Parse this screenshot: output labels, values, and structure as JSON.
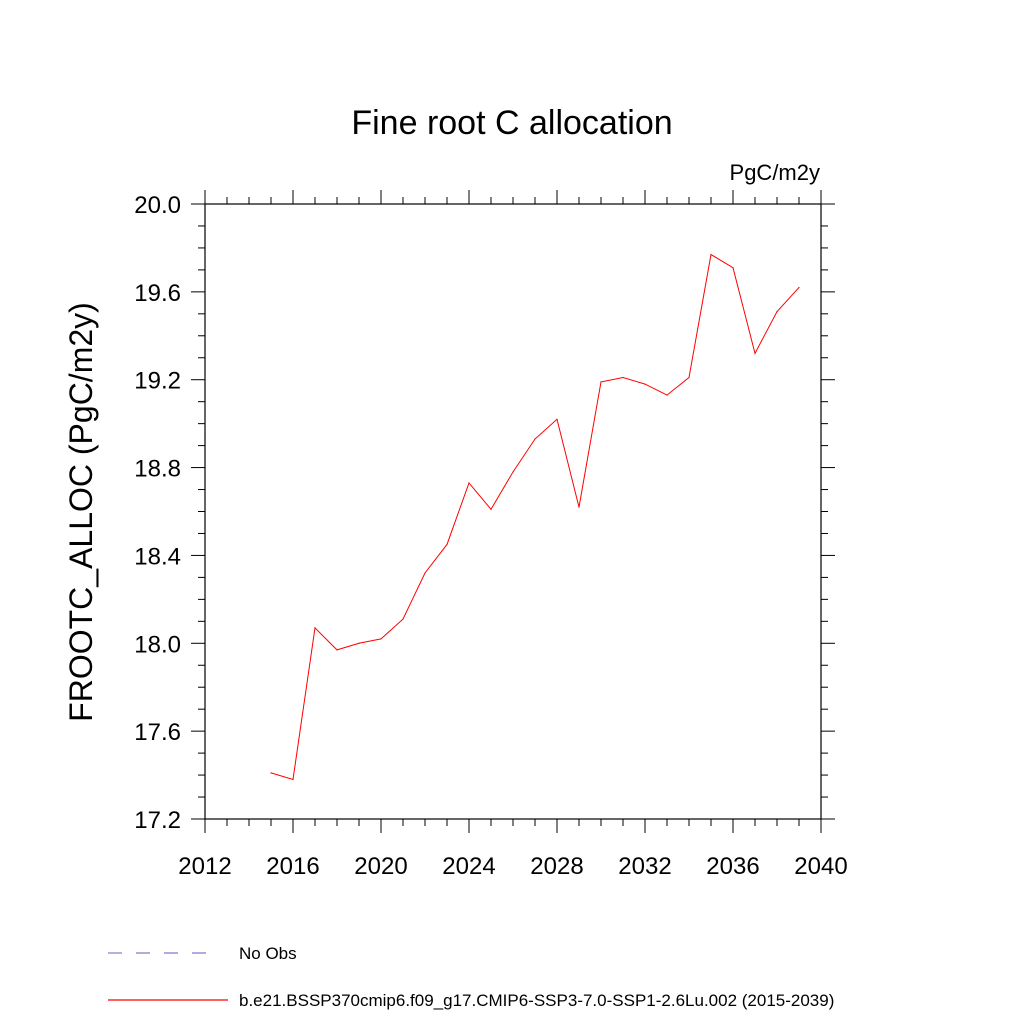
{
  "chart_data": {
    "type": "line",
    "title": "Fine root C allocation",
    "units": "PgC/m2y",
    "xlabel": "",
    "ylabel": "FROOTC_ALLOC  (PgC/m2y)",
    "xlim": [
      2012,
      2040
    ],
    "ylim": [
      17.2,
      20.0
    ],
    "xticks": [
      2012,
      2016,
      2020,
      2024,
      2028,
      2032,
      2036,
      2040
    ],
    "yticks": [
      17.2,
      17.6,
      18.0,
      18.4,
      18.8,
      19.2,
      19.6,
      20.0
    ],
    "xtick_labels": [
      "2012",
      "2016",
      "2020",
      "2024",
      "2028",
      "2032",
      "2036",
      "2040"
    ],
    "ytick_labels": [
      "17.2",
      "17.6",
      "18.0",
      "18.4",
      "18.8",
      "19.2",
      "19.6",
      "20.0"
    ],
    "series": [
      {
        "name": "b.e21.BSSP370cmip6.f09_g17.CMIP6-SSP3-7.0-SSP1-2.6Lu.002 (2015-2039)",
        "color": "#ff0000",
        "style": "solid",
        "x": [
          2015,
          2016,
          2017,
          2018,
          2019,
          2020,
          2021,
          2022,
          2023,
          2024,
          2025,
          2026,
          2027,
          2028,
          2029,
          2030,
          2031,
          2032,
          2033,
          2034,
          2035,
          2036,
          2037,
          2038,
          2039
        ],
        "y": [
          17.41,
          17.38,
          18.07,
          17.97,
          18.0,
          18.02,
          18.11,
          18.32,
          18.45,
          18.73,
          18.61,
          18.78,
          18.93,
          19.02,
          18.62,
          19.19,
          19.21,
          19.18,
          19.13,
          19.21,
          19.77,
          19.71,
          19.32,
          19.51,
          19.62
        ]
      }
    ],
    "legend": [
      {
        "label": "No Obs",
        "color": "#8877cc",
        "style": "dashed"
      },
      {
        "label": "b.e21.BSSP370cmip6.f09_g17.CMIP6-SSP3-7.0-SSP1-2.6Lu.002 (2015-2039)",
        "color": "#ff0000",
        "style": "solid"
      }
    ],
    "legend_position": "bottom-left"
  }
}
